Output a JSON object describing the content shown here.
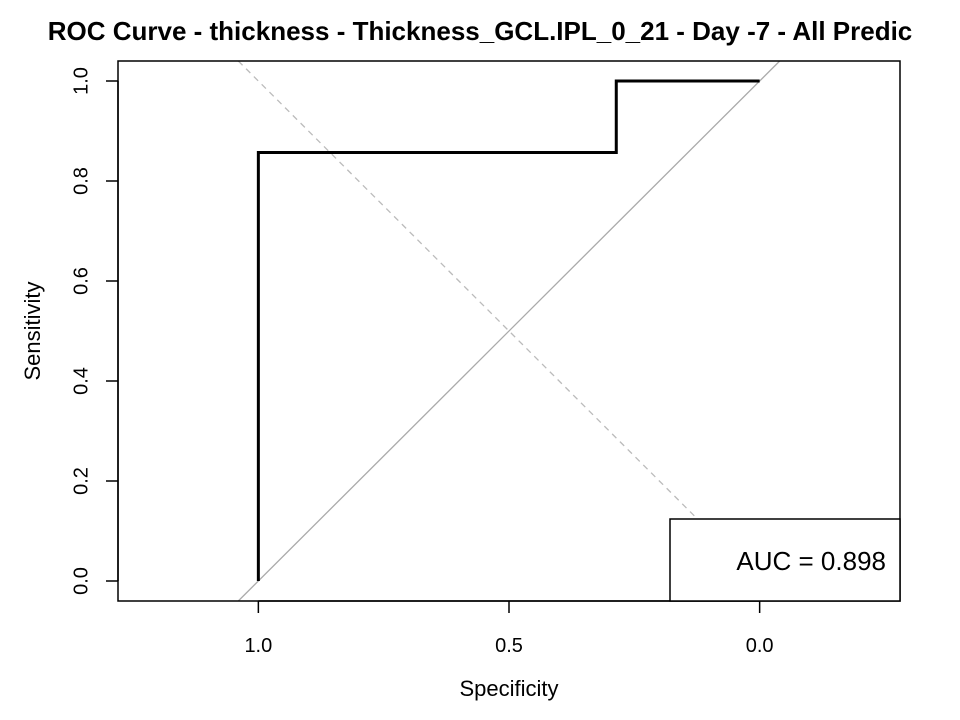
{
  "chart_data": {
    "type": "line",
    "title": "ROC Curve - thickness - Thickness_GCL.IPL_0_21 - Day -7 - All Predic",
    "xlabel": "Specificity",
    "ylabel": "Sensitivity",
    "x_reversed": true,
    "xlim": [
      1.28,
      -0.28
    ],
    "ylim": [
      -0.04,
      1.04
    ],
    "x_ticks": [
      1.0,
      0.5,
      0.0
    ],
    "x_tick_labels": [
      "1.0",
      "0.5",
      "0.0"
    ],
    "y_ticks": [
      0.0,
      0.2,
      0.4,
      0.6,
      0.8,
      1.0
    ],
    "y_tick_labels": [
      "0.0",
      "0.2",
      "0.4",
      "0.6",
      "0.8",
      "1.0"
    ],
    "series": [
      {
        "x": [
          1.0,
          1.0,
          0.286,
          0.286,
          0.0
        ],
        "y": [
          0.0,
          0.857,
          0.857,
          1.0,
          1.0
        ],
        "color": "#000000"
      }
    ],
    "reference_lines": [
      {
        "style": "solid",
        "color": "#aaaaaa",
        "x": [
          1.04,
          -0.04
        ],
        "y": [
          -0.04,
          1.04
        ]
      },
      {
        "style": "dashed",
        "color": "#bbbbbb",
        "x": [
          1.04,
          0.0
        ],
        "y": [
          1.04,
          0.0
        ]
      }
    ],
    "annotation": {
      "text": "AUC = 0.898",
      "position": "bottom-right"
    },
    "grid": false,
    "legend": "none"
  }
}
